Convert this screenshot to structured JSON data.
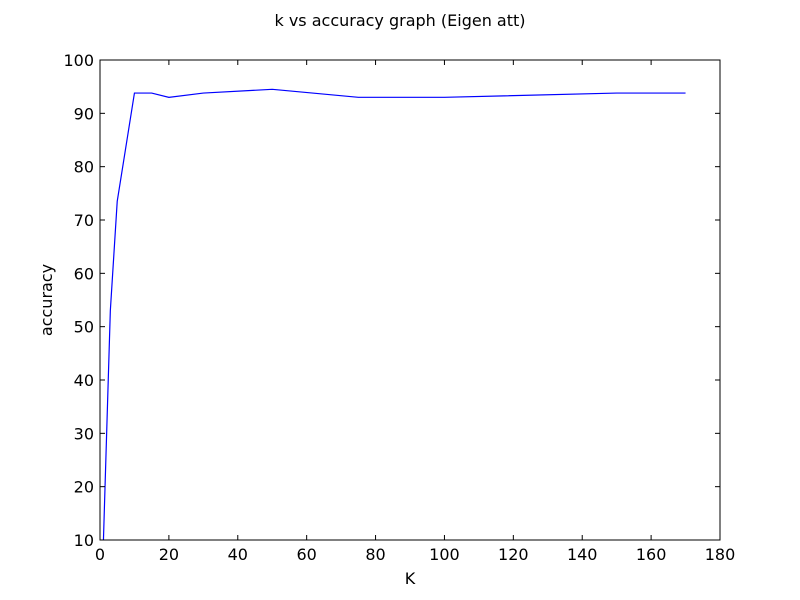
{
  "chart_data": {
    "type": "line",
    "title": "k vs accuracy graph (Eigen att)",
    "xlabel": "K",
    "ylabel": "accuracy",
    "xlim": [
      0,
      180
    ],
    "ylim": [
      10,
      100
    ],
    "xticks": [
      0,
      20,
      40,
      60,
      80,
      100,
      120,
      140,
      160,
      180
    ],
    "yticks": [
      10,
      20,
      30,
      40,
      50,
      60,
      70,
      80,
      90,
      100
    ],
    "grid": false,
    "series": [
      {
        "color": "#0000ff",
        "x": [
          1,
          3,
          5,
          10,
          15,
          20,
          30,
          50,
          75,
          100,
          150,
          170
        ],
        "y": [
          10,
          53,
          73.5,
          93.8,
          93.8,
          93,
          93.8,
          94.5,
          93,
          93,
          93.8,
          93.8
        ]
      }
    ]
  }
}
